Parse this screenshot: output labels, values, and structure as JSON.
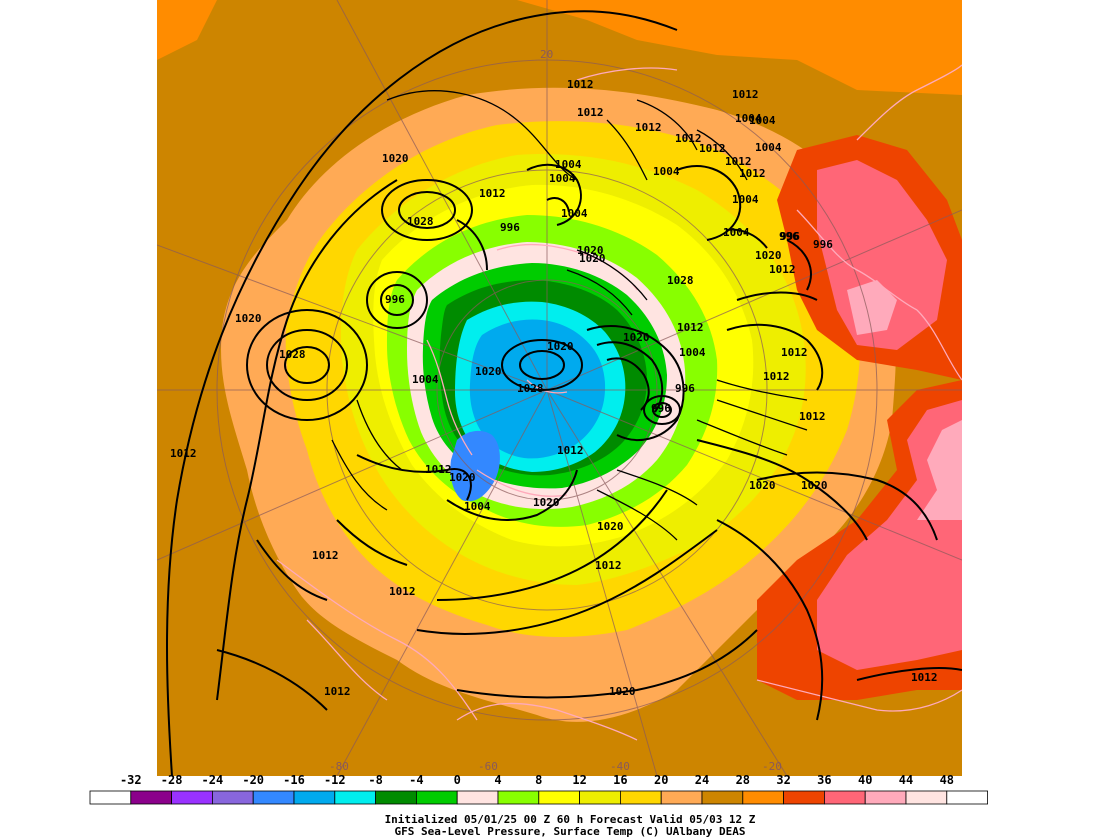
{
  "caption": {
    "line1": "Initialized 05/01/25 00 Z  60 h Forecast Valid 05/03 12 Z",
    "line2": "GFS Sea-Level Pressure, Surface Temp (C)     UAlbany DEAS"
  },
  "colorbar": {
    "labels": [
      "-32",
      "-28",
      "-24",
      "-20",
      "-16",
      "-12",
      "-8",
      "-4",
      "0",
      "4",
      "8",
      "12",
      "16",
      "20",
      "24",
      "28",
      "32",
      "36",
      "40",
      "44",
      "48"
    ],
    "colors": [
      "#ffffff",
      "#8b008b",
      "#9932ff",
      "#8866dd",
      "#3388ff",
      "#00aaee",
      "#00eeee",
      "#008b00",
      "#00cc00",
      "#ffe4e1",
      "#88ff00",
      "#ffff00",
      "#eeee00",
      "#ffd700",
      "#ffaa55",
      "#cd8500",
      "#ff8c00",
      "#ee4400",
      "#ff6677",
      "#ffaabb",
      "#ffe4e1",
      "#ffffff"
    ]
  },
  "map": {
    "grid_labels": [
      "20",
      "-60",
      "-40",
      "-20",
      "-80"
    ],
    "isobar_labels": [
      "1012",
      "1012",
      "1012",
      "1004",
      "1004",
      "1012",
      "1012",
      "1004",
      "1004",
      "1012",
      "1004",
      "1012",
      "1020",
      "1012",
      "1004",
      "1004",
      "996",
      "996",
      "1004",
      "1028",
      "1028",
      "996",
      "1020",
      "1020",
      "1012",
      "1020",
      "1020",
      "1004",
      "1020",
      "996",
      "1028",
      "1020",
      "1012",
      "1004",
      "1012",
      "1012",
      "1004",
      "1020",
      "1028",
      "996",
      "996",
      "996",
      "1012",
      "1012",
      "1012",
      "1020",
      "1020",
      "1012",
      "1020",
      "1004",
      "1020",
      "1020",
      "1012",
      "1012",
      "1012",
      "1020",
      "1012",
      "1012",
      "1012"
    ],
    "colors": {
      "background_warm": "#cd8500",
      "ocean_orange": "#ff8c00",
      "land_outline": "#ffaabb",
      "isobar": "#000000"
    }
  }
}
